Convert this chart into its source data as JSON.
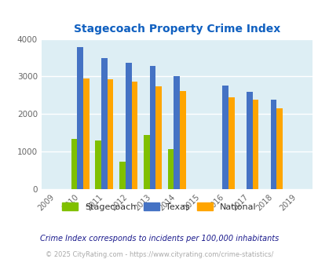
{
  "title": "Stagecoach Property Crime Index",
  "years": [
    2009,
    2010,
    2011,
    2012,
    2013,
    2014,
    2015,
    2016,
    2017,
    2018,
    2019
  ],
  "stagecoach": {
    "2010": 1340,
    "2011": 1300,
    "2012": 730,
    "2013": 1430,
    "2014": 1060
  },
  "texas": {
    "2010": 3780,
    "2011": 3490,
    "2012": 3370,
    "2013": 3280,
    "2014": 3010,
    "2016": 2760,
    "2017": 2580,
    "2018": 2370
  },
  "national": {
    "2010": 2950,
    "2011": 2920,
    "2012": 2870,
    "2013": 2730,
    "2014": 2610,
    "2016": 2450,
    "2017": 2380,
    "2018": 2160
  },
  "color_stagecoach": "#80c000",
  "color_texas": "#4472c4",
  "color_national": "#ffa500",
  "bg_color": "#ddeef4",
  "title_color": "#1060c0",
  "note_text": "Crime Index corresponds to incidents per 100,000 inhabitants",
  "footer_text": "© 2025 CityRating.com - https://www.cityrating.com/crime-statistics/",
  "ylim": [
    0,
    4000
  ],
  "bar_width": 0.25
}
